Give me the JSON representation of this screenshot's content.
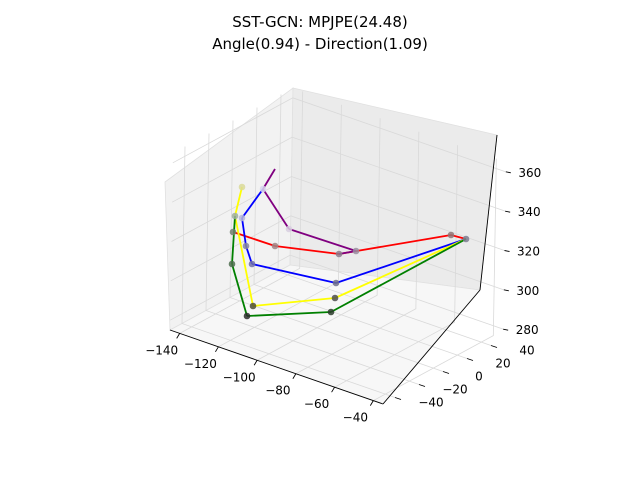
{
  "chart_data": {
    "type": "scatter",
    "subtype": "3d-skeleton",
    "title": "SST-GCN: MPJPE(24.48)",
    "subtitle": "Angle(0.94) - Direction(1.09)",
    "xlabel": "",
    "ylabel": "",
    "zlabel": "",
    "x_ticks": [
      "−140",
      "−120",
      "−100",
      "−80",
      "−60",
      "−40"
    ],
    "y_ticks": [
      "−40",
      "−20",
      "0",
      "20",
      "40"
    ],
    "z_ticks": [
      "280",
      "300",
      "320",
      "340",
      "360"
    ],
    "xlim": [
      -145,
      -35
    ],
    "ylim": [
      -50,
      50
    ],
    "zlim": [
      275,
      365
    ],
    "grid": true,
    "legend": "none",
    "colors": {
      "red": "#ff0000",
      "blue": "#0000ff",
      "purple": "#800080",
      "yellow": "#ffff00",
      "green": "#008000",
      "pane_left": "#f2f2f2",
      "pane_back": "#ebebeb",
      "pane_floor": "#f7f7f7",
      "grid": "#d9d9d9"
    },
    "joints": [
      {
        "id": "hip",
        "x": -88,
        "y": 10,
        "z": 301
      },
      {
        "id": "rhip",
        "x": -86,
        "y": 0,
        "z": 302
      },
      {
        "id": "rknee",
        "x": -118,
        "y": 8,
        "z": 300
      },
      {
        "id": "rankle",
        "x": -138,
        "y": 12,
        "z": 301
      },
      {
        "id": "lhip",
        "x": -90,
        "y": 18,
        "z": 300
      },
      {
        "id": "lknee",
        "x": -115,
        "y": 20,
        "z": 299
      },
      {
        "id": "lankle",
        "x": -133,
        "y": 25,
        "z": 308
      },
      {
        "id": "spine",
        "x": -100,
        "y": 10,
        "z": 316
      },
      {
        "id": "thorax",
        "x": -114,
        "y": 4,
        "z": 338
      },
      {
        "id": "neck",
        "x": -118,
        "y": 2,
        "z": 347
      },
      {
        "id": "head",
        "x": -123,
        "y": -2,
        "z": 355
      },
      {
        "id": "lshoulder",
        "x": -132,
        "y": 16,
        "z": 320
      },
      {
        "id": "lelbow",
        "x": -130,
        "y": 18,
        "z": 303
      },
      {
        "id": "lwrist",
        "x": -62,
        "y": 14,
        "z": 283
      },
      {
        "id": "rshoulder",
        "x": -134,
        "y": 4,
        "z": 309
      },
      {
        "id": "relbow",
        "x": -128,
        "y": 12,
        "z": 295
      },
      {
        "id": "rwrist",
        "x": -70,
        "y": 18,
        "z": 280
      },
      {
        "id": "lfoot_a",
        "x": -40,
        "y": 10,
        "z": 315
      },
      {
        "id": "lfoot_b",
        "x": -42,
        "y": 6,
        "z": 318
      },
      {
        "id": "rfoot_a",
        "x": -124,
        "y": -14,
        "z": 280
      },
      {
        "id": "rfoot_b",
        "x": -76,
        "y": -6,
        "z": 282
      }
    ]
  }
}
